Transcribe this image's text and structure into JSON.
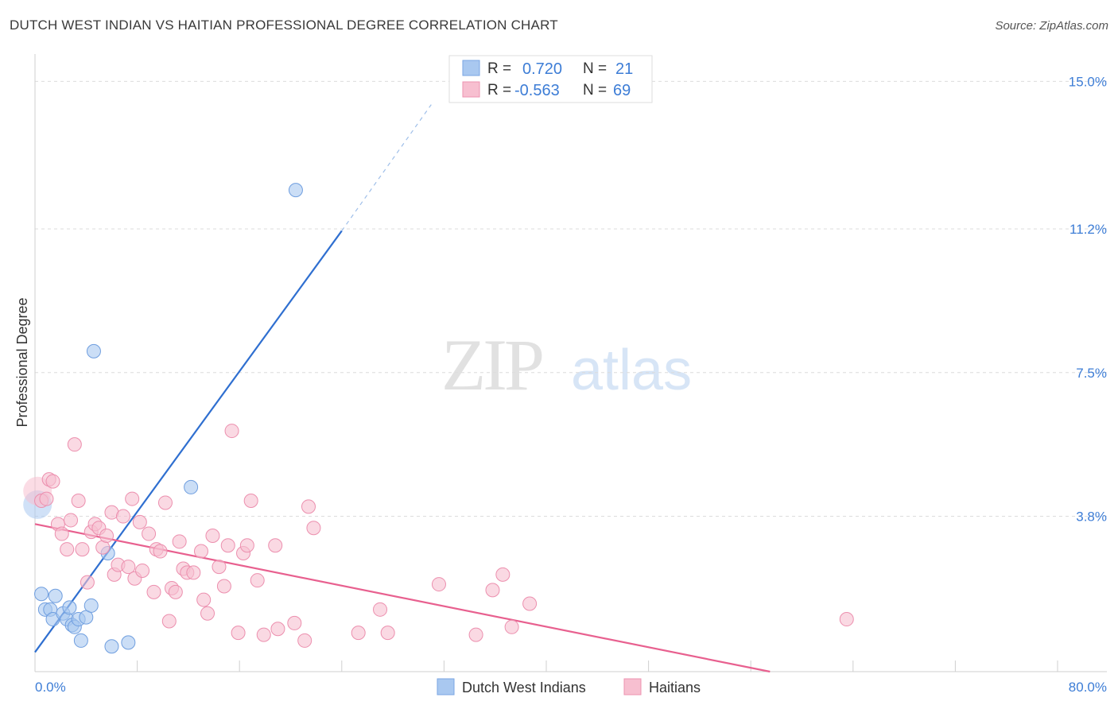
{
  "header": {
    "title": "DUTCH WEST INDIAN VS HAITIAN PROFESSIONAL DEGREE CORRELATION CHART",
    "source": "Source: ZipAtlas.com"
  },
  "watermark": {
    "zip": "ZIP",
    "atlas": "atlas"
  },
  "stats": {
    "r_label": "R =",
    "n_label": "N =",
    "rows": [
      {
        "series": "Dutch West Indians",
        "r": "0.720",
        "n": "21",
        "color": "#a9c8f0",
        "stroke": "#7aa6e3"
      },
      {
        "series": "Haitians",
        "r": "-0.563",
        "n": "69",
        "color": "#f7bfd0",
        "stroke": "#ee93b1"
      }
    ]
  },
  "chart_data": {
    "type": "scatter",
    "title": "DUTCH WEST INDIAN VS HAITIAN PROFESSIONAL DEGREE CORRELATION CHART",
    "xlabel": "",
    "ylabel": "Professional Degree",
    "xlim": [
      0,
      80
    ],
    "ylim": [
      -0.2,
      15.6
    ],
    "x_tick_labels": [
      {
        "value": 0,
        "label": "0.0%"
      },
      {
        "value": 80,
        "label": "80.0%"
      }
    ],
    "y_ticks": [
      {
        "value": 3.8,
        "label": "3.8%"
      },
      {
        "value": 7.5,
        "label": "7.5%"
      },
      {
        "value": 11.2,
        "label": "11.2%"
      },
      {
        "value": 15.0,
        "label": "15.0%"
      }
    ],
    "legend_position": "bottom-center",
    "series": [
      {
        "name": "Dutch West Indians",
        "color": "#a9c8f0",
        "stroke": "#6f9edf",
        "trend_color": "#2f6fd0",
        "trend": {
          "x0": 0,
          "y0": 0.3,
          "x1": 24,
          "y1": 11.15,
          "x_dash_end": 31,
          "y_dash_end": 14.4
        },
        "points": [
          {
            "x": 0.2,
            "y": 4.1,
            "big": true
          },
          {
            "x": 0.5,
            "y": 1.8
          },
          {
            "x": 0.8,
            "y": 1.4
          },
          {
            "x": 1.2,
            "y": 1.4
          },
          {
            "x": 1.4,
            "y": 1.15
          },
          {
            "x": 1.6,
            "y": 1.75
          },
          {
            "x": 2.2,
            "y": 1.3
          },
          {
            "x": 2.5,
            "y": 1.15
          },
          {
            "x": 2.7,
            "y": 1.45
          },
          {
            "x": 2.9,
            "y": 1.0
          },
          {
            "x": 3.1,
            "y": 0.95
          },
          {
            "x": 3.4,
            "y": 1.15
          },
          {
            "x": 3.6,
            "y": 0.6
          },
          {
            "x": 4.0,
            "y": 1.2
          },
          {
            "x": 4.4,
            "y": 1.5
          },
          {
            "x": 4.6,
            "y": 8.05
          },
          {
            "x": 5.7,
            "y": 2.85
          },
          {
            "x": 6.0,
            "y": 0.45
          },
          {
            "x": 7.3,
            "y": 0.55
          },
          {
            "x": 12.2,
            "y": 4.55
          },
          {
            "x": 20.4,
            "y": 12.2
          }
        ]
      },
      {
        "name": "Haitians",
        "color": "#f7bfd0",
        "stroke": "#ec8fae",
        "trend_color": "#e8608f",
        "trend": {
          "x0": 0,
          "y0": 3.6,
          "x1": 57.5,
          "y1": -0.2
        },
        "points": [
          {
            "x": 0.2,
            "y": 4.45,
            "big": true
          },
          {
            "x": 0.5,
            "y": 4.2
          },
          {
            "x": 0.9,
            "y": 4.25
          },
          {
            "x": 1.1,
            "y": 4.75
          },
          {
            "x": 1.4,
            "y": 4.7
          },
          {
            "x": 1.8,
            "y": 3.6
          },
          {
            "x": 2.1,
            "y": 3.35
          },
          {
            "x": 2.5,
            "y": 2.95
          },
          {
            "x": 2.8,
            "y": 3.7
          },
          {
            "x": 3.1,
            "y": 5.65
          },
          {
            "x": 3.4,
            "y": 4.2
          },
          {
            "x": 3.7,
            "y": 2.95
          },
          {
            "x": 4.1,
            "y": 2.1
          },
          {
            "x": 4.4,
            "y": 3.4
          },
          {
            "x": 4.7,
            "y": 3.6
          },
          {
            "x": 5.0,
            "y": 3.5
          },
          {
            "x": 5.3,
            "y": 3.0
          },
          {
            "x": 5.6,
            "y": 3.3
          },
          {
            "x": 6.0,
            "y": 3.9
          },
          {
            "x": 6.2,
            "y": 2.3
          },
          {
            "x": 6.5,
            "y": 2.55
          },
          {
            "x": 6.9,
            "y": 3.8
          },
          {
            "x": 7.3,
            "y": 2.5
          },
          {
            "x": 7.6,
            "y": 4.25
          },
          {
            "x": 7.8,
            "y": 2.2
          },
          {
            "x": 8.2,
            "y": 3.65
          },
          {
            "x": 8.4,
            "y": 2.4
          },
          {
            "x": 8.9,
            "y": 3.35
          },
          {
            "x": 9.3,
            "y": 1.85
          },
          {
            "x": 9.5,
            "y": 2.95
          },
          {
            "x": 9.8,
            "y": 2.9
          },
          {
            "x": 10.2,
            "y": 4.15
          },
          {
            "x": 10.5,
            "y": 1.1
          },
          {
            "x": 10.7,
            "y": 1.95
          },
          {
            "x": 11.0,
            "y": 1.85
          },
          {
            "x": 11.3,
            "y": 3.15
          },
          {
            "x": 11.6,
            "y": 2.45
          },
          {
            "x": 11.9,
            "y": 2.35
          },
          {
            "x": 12.4,
            "y": 2.35
          },
          {
            "x": 13.0,
            "y": 2.9
          },
          {
            "x": 13.2,
            "y": 1.65
          },
          {
            "x": 13.5,
            "y": 1.3
          },
          {
            "x": 13.9,
            "y": 3.3
          },
          {
            "x": 14.4,
            "y": 2.5
          },
          {
            "x": 14.8,
            "y": 2.0
          },
          {
            "x": 15.1,
            "y": 3.05
          },
          {
            "x": 15.4,
            "y": 6.0
          },
          {
            "x": 15.9,
            "y": 0.8
          },
          {
            "x": 16.3,
            "y": 2.85
          },
          {
            "x": 16.6,
            "y": 3.05
          },
          {
            "x": 16.9,
            "y": 4.2
          },
          {
            "x": 17.4,
            "y": 2.15
          },
          {
            "x": 17.9,
            "y": 0.75
          },
          {
            "x": 18.8,
            "y": 3.05
          },
          {
            "x": 19.0,
            "y": 0.9
          },
          {
            "x": 20.3,
            "y": 1.05
          },
          {
            "x": 21.1,
            "y": 0.6
          },
          {
            "x": 21.4,
            "y": 4.05
          },
          {
            "x": 21.8,
            "y": 3.5
          },
          {
            "x": 25.3,
            "y": 0.8
          },
          {
            "x": 27.0,
            "y": 1.4
          },
          {
            "x": 27.6,
            "y": 0.8
          },
          {
            "x": 31.6,
            "y": 2.05
          },
          {
            "x": 34.5,
            "y": 0.75
          },
          {
            "x": 35.8,
            "y": 1.9
          },
          {
            "x": 36.6,
            "y": 2.3
          },
          {
            "x": 37.3,
            "y": 0.95
          },
          {
            "x": 38.7,
            "y": 1.55
          },
          {
            "x": 63.5,
            "y": 1.15
          }
        ]
      }
    ]
  }
}
